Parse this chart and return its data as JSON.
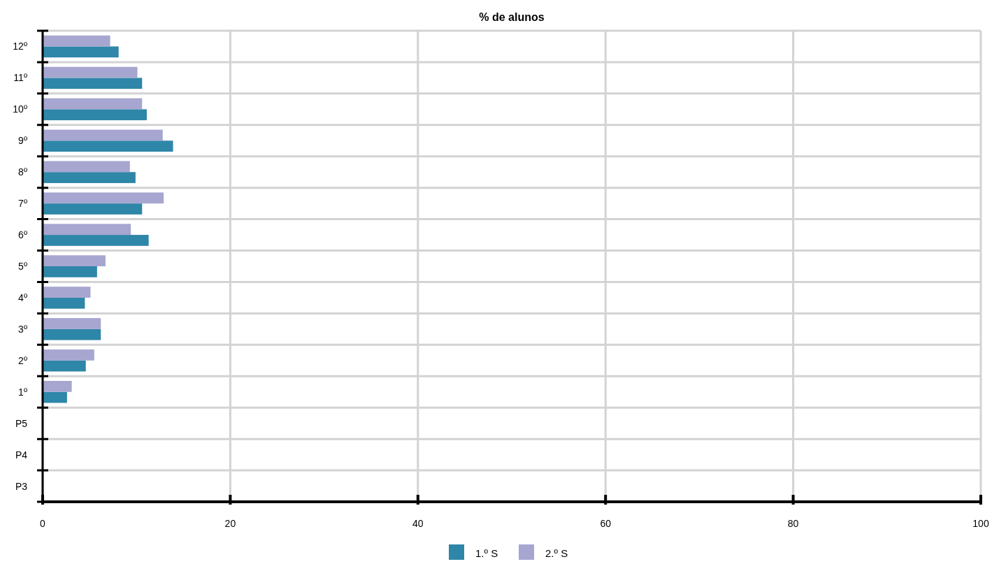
{
  "chart_data": {
    "type": "bar",
    "orientation": "horizontal",
    "title": "% de alunos",
    "categories": [
      "12º",
      "11º",
      "10º",
      "9º",
      "8º",
      "7º",
      "6º",
      "5º",
      "4º",
      "3º",
      "2º",
      "1º",
      "P5",
      "P4",
      "P3"
    ],
    "series": [
      {
        "name": "1.º S",
        "color": "#2e86a8",
        "values": [
          8.1,
          10.6,
          11.1,
          13.9,
          9.9,
          10.6,
          11.3,
          5.8,
          4.5,
          6.2,
          4.6,
          2.6,
          null,
          null,
          null
        ]
      },
      {
        "name": "2.º S",
        "color": "#a6a6d0",
        "values": [
          7.2,
          10.1,
          10.6,
          12.8,
          9.3,
          12.9,
          9.4,
          6.7,
          5.1,
          6.2,
          5.5,
          3.1,
          null,
          null,
          null
        ]
      }
    ],
    "xlim": [
      0,
      100
    ],
    "xticks": [
      0,
      20,
      40,
      60,
      80,
      100
    ],
    "grid": true,
    "legend": "bottom"
  }
}
